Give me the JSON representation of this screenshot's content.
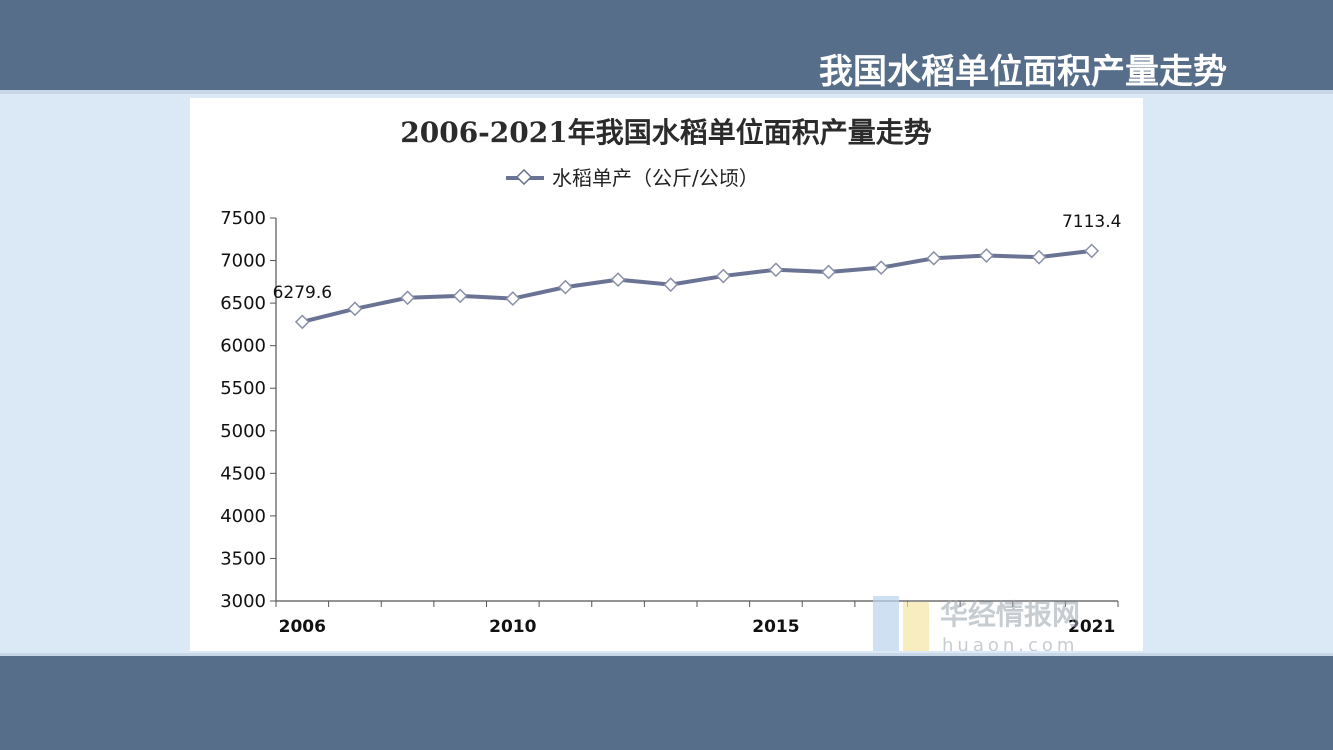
{
  "slide": {
    "title": "我国水稻单位面积产量走势"
  },
  "chart_data": {
    "type": "line",
    "title": "2006-2021年我国水稻单位面积产量走势",
    "series": [
      {
        "name": "水稻单产（公斤/公顷）",
        "values": [
          6279.6,
          6433,
          6563,
          6585,
          6553,
          6688,
          6776,
          6717,
          6818,
          6892,
          6866,
          6917,
          7027,
          7059,
          7040,
          7113.4
        ],
        "color": "#6b7394"
      }
    ],
    "x": [
      2006,
      2007,
      2008,
      2009,
      2010,
      2011,
      2012,
      2013,
      2014,
      2015,
      2016,
      2017,
      2018,
      2019,
      2020,
      2021
    ],
    "x_tick_labels": [
      "2006",
      "2010",
      "2015",
      "2021"
    ],
    "x_tick_label_years": [
      2006,
      2010,
      2015,
      2021
    ],
    "y_ticks": [
      "3000",
      "3500",
      "4000",
      "4500",
      "5000",
      "5500",
      "6000",
      "6500",
      "7000",
      "7500"
    ],
    "ylim": [
      3000,
      7500
    ],
    "data_labels": [
      {
        "year": 2006,
        "text": "6279.6"
      },
      {
        "year": 2021,
        "text": "7113.4"
      }
    ],
    "legend_position": "top",
    "grid": false
  },
  "watermark": {
    "text": "华经情报网",
    "sub": "huaon.com"
  }
}
